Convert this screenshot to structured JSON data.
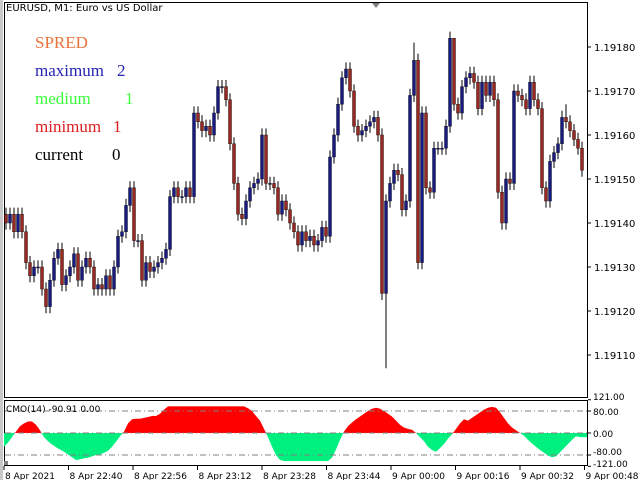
{
  "window": {
    "title": "EURUSD, M1:  Euro vs US Dollar"
  },
  "spread_panel": {
    "heading": {
      "label": "SPRED",
      "color": "#e8733a"
    },
    "rows": [
      {
        "label": "maximum",
        "value": "2",
        "color": "#2424b4"
      },
      {
        "label": "medium",
        "value": "1",
        "color": "#3cff3c"
      },
      {
        "label": "minimum",
        "value": "1",
        "color": "#dc1e1e"
      },
      {
        "label": "current",
        "value": "0",
        "color": "#000000"
      }
    ]
  },
  "price_axis": {
    "labels": [
      "1.19180",
      "1.19170",
      "1.19160",
      "1.19150",
      "1.19140",
      "1.19130",
      "1.19120",
      "1.19110"
    ]
  },
  "time_axis": {
    "labels": [
      "8 Apr 2021",
      "8 Apr 22:40",
      "8 Apr 22:56",
      "8 Apr 23:12",
      "8 Apr 23:28",
      "8 Apr 23:44",
      "9 Apr 00:00",
      "9 Apr 00:16",
      "9 Apr 00:32",
      "9 Apr 00:48"
    ]
  },
  "colors": {
    "bull": "#1a1a84",
    "bear": "#9a2820",
    "wick": "#000000",
    "cmo_up": "#ff0000",
    "cmo_down": "#00f080",
    "grid": "#808080"
  },
  "chart_data": [
    {
      "type": "candlestick",
      "symbol": "EURUSD",
      "timeframe": "M1",
      "ylim": [
        1.19105,
        1.1919
      ],
      "first_open": 1.19142,
      "close": [
        1.1914,
        1.19142,
        1.19138,
        1.19142,
        1.19138,
        1.19131,
        1.19128,
        1.1913,
        1.1913,
        1.19125,
        1.19121,
        1.19127,
        1.19132,
        1.19134,
        1.19126,
        1.19128,
        1.1913,
        1.19133,
        1.19127,
        1.1913,
        1.19132,
        1.1913,
        1.19125,
        1.19126,
        1.19125,
        1.19128,
        1.19125,
        1.1913,
        1.19137,
        1.19138,
        1.19144,
        1.19148,
        1.19136,
        1.19136,
        1.19127,
        1.19131,
        1.19129,
        1.1913,
        1.19131,
        1.19132,
        1.19134,
        1.19146,
        1.19148,
        1.19146,
        1.19146,
        1.19148,
        1.19146,
        1.19165,
        1.19163,
        1.19161,
        1.19162,
        1.1916,
        1.19165,
        1.19171,
        1.19171,
        1.19168,
        1.19158,
        1.19149,
        1.19142,
        1.19141,
        1.19145,
        1.19148,
        1.19149,
        1.1915,
        1.1916,
        1.19149,
        1.19149,
        1.19148,
        1.19142,
        1.19145,
        1.19143,
        1.1914,
        1.19138,
        1.19135,
        1.19138,
        1.19136,
        1.19137,
        1.19135,
        1.19136,
        1.19139,
        1.19137,
        1.19155,
        1.1916,
        1.19167,
        1.19173,
        1.19175,
        1.1917,
        1.19162,
        1.1916,
        1.19161,
        1.19162,
        1.19163,
        1.19164,
        1.1916,
        1.19124,
        1.19145,
        1.19149,
        1.19152,
        1.19151,
        1.19143,
        1.19145,
        1.19169,
        1.19177,
        1.19131,
        1.19165,
        1.19148,
        1.19147,
        1.19157,
        1.19157,
        1.19157,
        1.19162,
        1.19182,
        1.19167,
        1.19165,
        1.19171,
        1.19173,
        1.19174,
        1.19172,
        1.19166,
        1.19172,
        1.19169,
        1.19172,
        1.19168,
        1.19147,
        1.1914,
        1.1915,
        1.19149,
        1.1917,
        1.19169,
        1.19168,
        1.19166,
        1.19172,
        1.19168,
        1.19166,
        1.19148,
        1.19145,
        1.19154,
        1.19156,
        1.19158,
        1.19164,
        1.19163,
        1.19161,
        1.19159,
        1.19157,
        1.19152
      ],
      "notable_extremes": [
        {
          "index": 95,
          "low": 1.19107
        },
        {
          "index": 102,
          "high": 1.19181
        },
        {
          "index": 112,
          "high": 1.19182
        },
        {
          "index": 140,
          "high": 1.19167
        }
      ]
    },
    {
      "type": "area",
      "title": "CMO(14)",
      "readout": "CMO(14) -90.91 0.00",
      "ylim": [
        -121,
        121
      ],
      "levels": [
        80,
        0,
        -80
      ],
      "level_labels": [
        "121.00",
        "80.00",
        "0.00",
        "-80.00",
        "-121.00"
      ],
      "values": [
        -50,
        -35,
        -15,
        5,
        25,
        35,
        42,
        42,
        30,
        10,
        -15,
        -30,
        -42,
        -52,
        -60,
        -68,
        -78,
        -88,
        -98,
        -96,
        -92,
        -90,
        -85,
        -80,
        -78,
        -72,
        -65,
        -50,
        -32,
        -12,
        5,
        35,
        50,
        52,
        52,
        55,
        58,
        62,
        62,
        70,
        85,
        97,
        97,
        97,
        97,
        97,
        97,
        97,
        97,
        97,
        97,
        97,
        97,
        97,
        97,
        97,
        97,
        97,
        97,
        97,
        97,
        90,
        80,
        62,
        45,
        15,
        -15,
        -50,
        -80,
        -98,
        -102,
        -102,
        -102,
        -102,
        -102,
        -102,
        -102,
        -102,
        -102,
        -102,
        -102,
        -102,
        -90,
        -60,
        -25,
        5,
        25,
        38,
        50,
        60,
        70,
        80,
        88,
        92,
        88,
        80,
        70,
        60,
        45,
        30,
        20,
        15,
        12,
        0,
        -15,
        -30,
        -50,
        -62,
        -68,
        -55,
        -40,
        -20,
        -5,
        15,
        35,
        50,
        45,
        55,
        65,
        75,
        85,
        92,
        95,
        92,
        75,
        55,
        35,
        20,
        10,
        0,
        -10,
        -25,
        -38,
        -50,
        -62,
        -72,
        -82,
        -88,
        -85,
        -70,
        -55,
        -40,
        -25,
        -12,
        -15
      ]
    }
  ]
}
